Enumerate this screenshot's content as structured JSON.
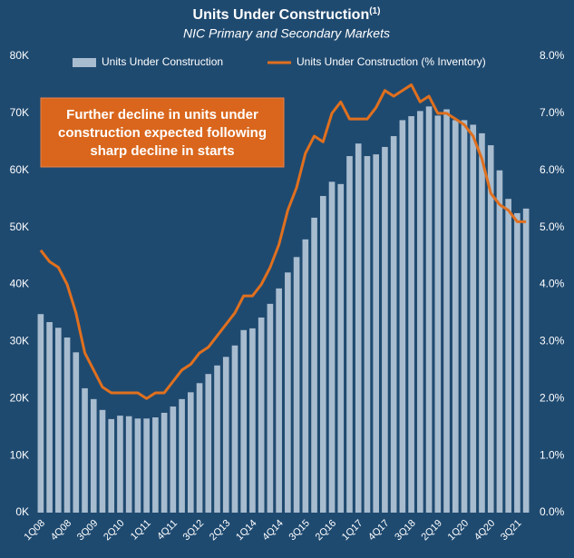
{
  "chart_data": {
    "type": "bar_line",
    "title": "Units Under Construction",
    "title_note": "(1)",
    "subtitle": "NIC Primary and Secondary Markets",
    "annotation": [
      "Further decline in units under",
      "construction expected following",
      "sharp decline in starts"
    ],
    "categories": [
      "1Q08",
      null,
      null,
      "4Q08",
      null,
      null,
      "3Q09",
      null,
      null,
      "2Q10",
      null,
      null,
      "1Q11",
      null,
      null,
      "4Q11",
      null,
      null,
      "3Q12",
      null,
      null,
      "2Q13",
      null,
      null,
      "1Q14",
      null,
      null,
      "4Q14",
      null,
      null,
      "3Q15",
      null,
      null,
      "2Q16",
      null,
      null,
      "1Q17",
      null,
      null,
      "4Q17",
      null,
      null,
      "3Q18",
      null,
      null,
      "2Q19",
      null,
      null,
      "1Q20",
      null,
      null,
      "4Q20",
      null,
      null,
      "3Q21",
      null
    ],
    "series": [
      {
        "name": "Units Under Construction",
        "color": "#a8bccf",
        "kind": "bar",
        "values": [
          34800,
          33400,
          32400,
          30700,
          28100,
          21800,
          19900,
          18000,
          16400,
          17000,
          16900,
          16500,
          16500,
          16700,
          17500,
          18600,
          19900,
          21100,
          22700,
          24300,
          25800,
          27300,
          29300,
          32000,
          32300,
          34200,
          36600,
          39300,
          42100,
          44800,
          47900,
          51700,
          55500,
          58000,
          57600,
          62500,
          64700,
          62500,
          62800,
          64100,
          66000,
          68800,
          69500,
          70400,
          71200,
          69600,
          70700,
          68800,
          68800,
          68000,
          66500,
          64400,
          60000,
          55000,
          52500,
          53300
        ]
      },
      {
        "name": "Units Under Construction (% Inventory)",
        "color": "#e0701e",
        "kind": "line",
        "axis": "y2",
        "values": [
          4.6,
          4.4,
          4.3,
          4.0,
          3.5,
          2.8,
          2.5,
          2.2,
          2.1,
          2.1,
          2.1,
          2.1,
          2.0,
          2.1,
          2.1,
          2.3,
          2.5,
          2.6,
          2.8,
          2.9,
          3.1,
          3.3,
          3.5,
          3.8,
          3.8,
          4.0,
          4.3,
          4.7,
          5.3,
          5.7,
          6.3,
          6.6,
          6.5,
          7.0,
          7.2,
          6.9,
          6.9,
          6.9,
          7.1,
          7.4,
          7.3,
          7.4,
          7.5,
          7.2,
          7.3,
          7.0,
          7.0,
          6.9,
          6.8,
          6.6,
          6.2,
          5.6,
          5.4,
          5.3,
          5.1,
          5.1
        ]
      }
    ],
    "ylim": [
      0,
      80000
    ],
    "yticks": [
      {
        "value": 0,
        "label": "0K"
      },
      {
        "value": 10000,
        "label": "10K"
      },
      {
        "value": 20000,
        "label": "20K"
      },
      {
        "value": 30000,
        "label": "30K"
      },
      {
        "value": 40000,
        "label": "40K"
      },
      {
        "value": 50000,
        "label": "50K"
      },
      {
        "value": 60000,
        "label": "60K"
      },
      {
        "value": 70000,
        "label": "70K"
      },
      {
        "value": 80000,
        "label": "80K"
      }
    ],
    "y2lim": [
      0,
      8
    ],
    "y2ticks": [
      {
        "value": 0,
        "label": "0.0%"
      },
      {
        "value": 1,
        "label": "1.0%"
      },
      {
        "value": 2,
        "label": "2.0%"
      },
      {
        "value": 3,
        "label": "3.0%"
      },
      {
        "value": 4,
        "label": "4.0%"
      },
      {
        "value": 5,
        "label": "5.0%"
      },
      {
        "value": 6,
        "label": "6.0%"
      },
      {
        "value": 7,
        "label": "7.0%"
      },
      {
        "value": 8,
        "label": "8.0%"
      }
    ],
    "grid": false,
    "legend": "top"
  }
}
